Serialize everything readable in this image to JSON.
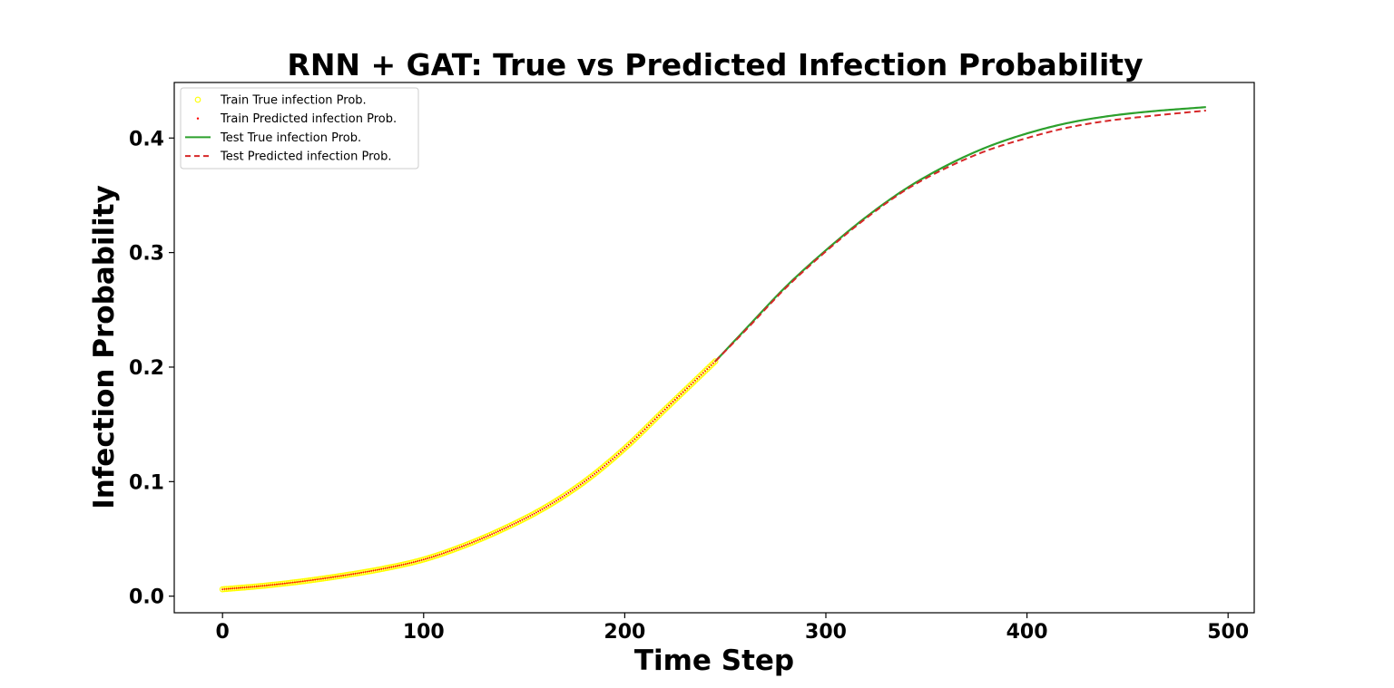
{
  "chart_data": {
    "type": "line",
    "title": "RNN + GAT: True vs Predicted Infection Probability",
    "xlabel": "Time Step",
    "ylabel": "Infection Probability",
    "xlim": [
      -24,
      513
    ],
    "ylim": [
      -0.0145,
      0.4485
    ],
    "xticks": [
      0,
      100,
      200,
      300,
      400,
      500
    ],
    "xtick_labels": [
      "0",
      "100",
      "200",
      "300",
      "400",
      "500"
    ],
    "yticks": [
      0.0,
      0.1,
      0.2,
      0.3,
      0.4
    ],
    "ytick_labels": [
      "0.0",
      "0.1",
      "0.2",
      "0.3",
      "0.4"
    ],
    "grid": false,
    "legend_position": "top-left",
    "colors": {
      "train_true": "#ffff00",
      "train_pred": "#ff0000",
      "test_true": "#2ca02c",
      "test_pred": "#d62728"
    },
    "legend": [
      "Train True infection  Prob.",
      "Train Predicted infection  Prob.",
      "Test True infection  Prob.",
      "Test Predicted infection  Prob."
    ],
    "train_x_range": [
      0,
      245
    ],
    "test_x_range": [
      245,
      489
    ],
    "series": [
      {
        "name": "Train True infection  Prob.",
        "style": "scatter-hollow",
        "x": [
          0,
          20,
          40,
          60,
          80,
          100,
          120,
          140,
          160,
          180,
          200,
          220,
          245
        ],
        "y": [
          0.006,
          0.009,
          0.013,
          0.018,
          0.024,
          0.032,
          0.044,
          0.059,
          0.077,
          0.1,
          0.129,
          0.163,
          0.205
        ]
      },
      {
        "name": "Train Predicted infection  Prob.",
        "style": "scatter-dot",
        "x": [
          0,
          20,
          40,
          60,
          80,
          100,
          120,
          140,
          160,
          180,
          200,
          220,
          245
        ],
        "y": [
          0.006,
          0.009,
          0.013,
          0.018,
          0.024,
          0.032,
          0.044,
          0.059,
          0.077,
          0.1,
          0.129,
          0.163,
          0.205
        ]
      },
      {
        "name": "Test True infection  Prob.",
        "style": "line-solid",
        "x": [
          245,
          260,
          280,
          300,
          320,
          340,
          360,
          380,
          400,
          420,
          440,
          460,
          489
        ],
        "y": [
          0.205,
          0.233,
          0.27,
          0.302,
          0.331,
          0.356,
          0.376,
          0.392,
          0.404,
          0.413,
          0.419,
          0.423,
          0.427
        ]
      },
      {
        "name": "Test Predicted infection  Prob.",
        "style": "line-dashed",
        "x": [
          245,
          260,
          280,
          300,
          320,
          340,
          360,
          380,
          400,
          420,
          440,
          460,
          489
        ],
        "y": [
          0.205,
          0.232,
          0.269,
          0.301,
          0.33,
          0.355,
          0.374,
          0.389,
          0.4,
          0.409,
          0.415,
          0.419,
          0.424
        ]
      }
    ]
  }
}
